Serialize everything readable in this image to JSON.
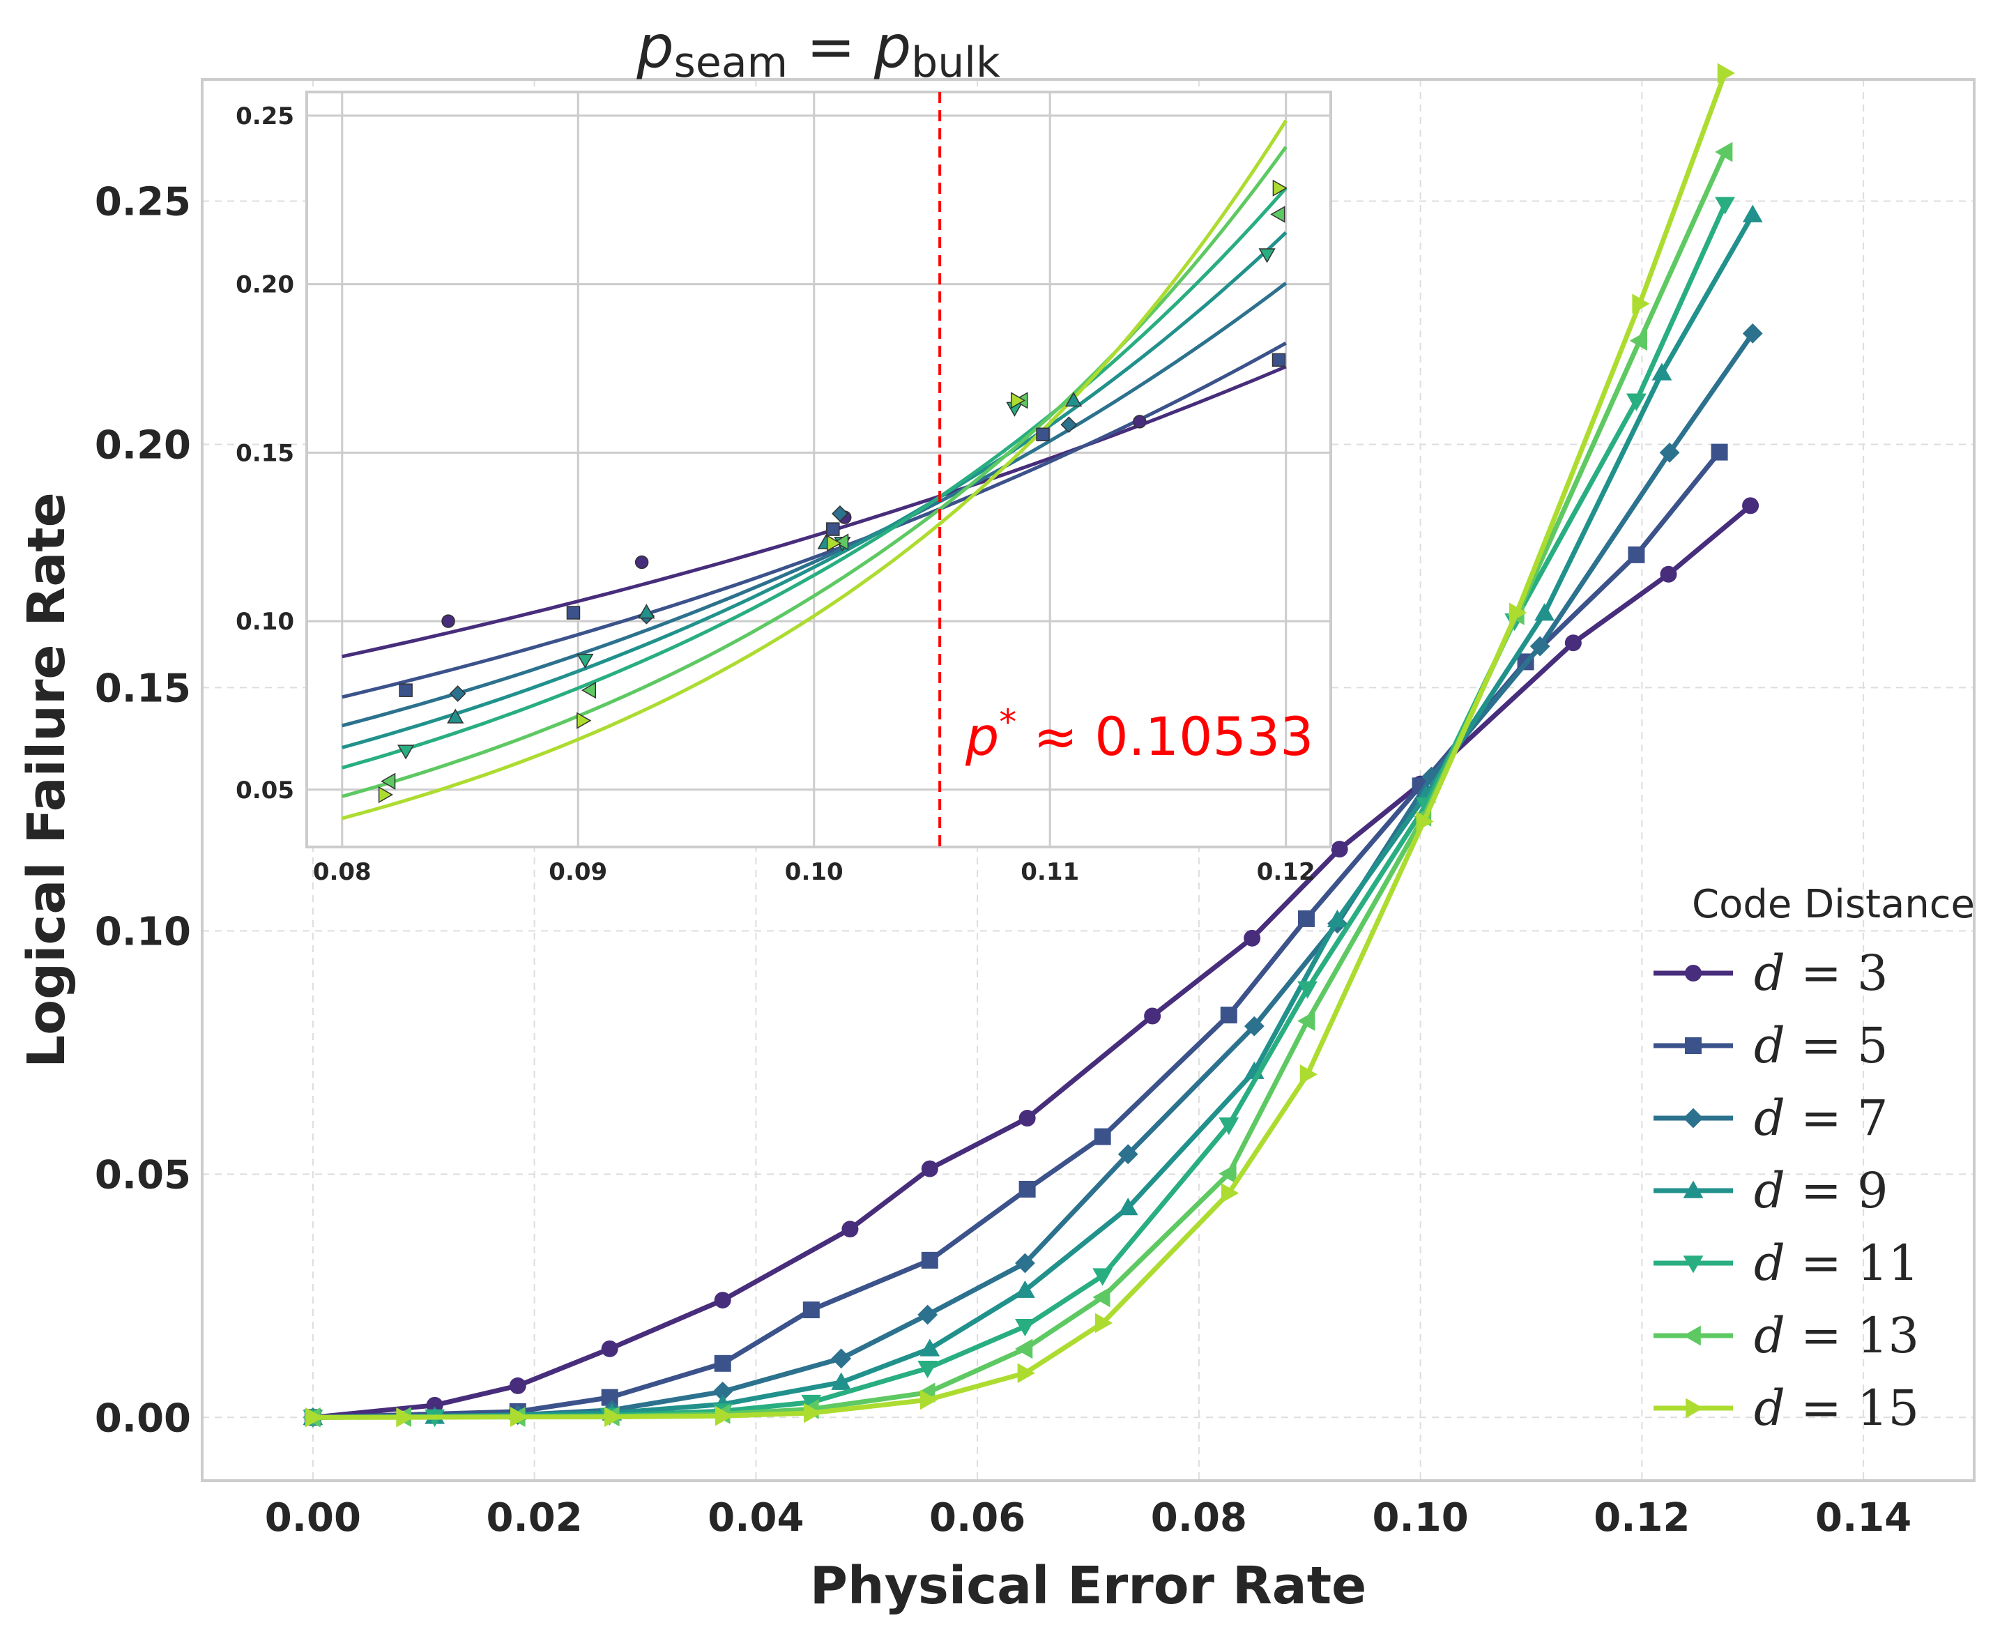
{
  "chart_data": {
    "type": "line",
    "xlabel": "Physical Error Rate",
    "ylabel": "Logical Failure Rate",
    "xlim": [
      -0.01,
      0.15
    ],
    "ylim": [
      -0.013,
      0.275
    ],
    "xticks": [
      0.0,
      0.02,
      0.04,
      0.06,
      0.08,
      0.1,
      0.12,
      0.14
    ],
    "xtick_labels": [
      "0.00",
      "0.02",
      "0.04",
      "0.06",
      "0.08",
      "0.10",
      "0.12",
      "0.14"
    ],
    "yticks": [
      0.0,
      0.05,
      0.1,
      0.15,
      0.2,
      0.25
    ],
    "ytick_labels": [
      "0.00",
      "0.05",
      "0.10",
      "0.15",
      "0.20",
      "0.25"
    ],
    "grid": true,
    "legend": {
      "title": "Code Distance",
      "placement": "lower-right"
    },
    "series": [
      {
        "name": "d = 3",
        "d": "3",
        "color": "#472d7b",
        "marker": "circle",
        "x": [
          0.0,
          0.011,
          0.0185,
          0.0268,
          0.037,
          0.0485,
          0.0557,
          0.0645,
          0.0758,
          0.0848,
          0.0927,
          0.1,
          0.1138,
          0.1224,
          0.1298
        ],
        "y": [
          0.0,
          0.0025,
          0.0065,
          0.0141,
          0.0241,
          0.0387,
          0.0511,
          0.0615,
          0.0825,
          0.0985,
          0.1168,
          0.1302,
          0.1592,
          0.1733,
          0.1874
        ]
      },
      {
        "name": "d = 5",
        "d": "5",
        "color": "#3b528b",
        "marker": "square",
        "x": [
          0.0,
          0.0185,
          0.0268,
          0.037,
          0.045,
          0.0557,
          0.0645,
          0.0713,
          0.0827,
          0.0897,
          0.1,
          0.1095,
          0.1195,
          0.127
        ],
        "y": [
          0.0,
          0.0012,
          0.0041,
          0.0111,
          0.0221,
          0.0323,
          0.0469,
          0.0577,
          0.0827,
          0.1025,
          0.1298,
          0.1553,
          0.1773,
          0.1984
        ]
      },
      {
        "name": "d = 7",
        "d": "7",
        "color": "#2c728e",
        "marker": "diamond",
        "x": [
          0.0,
          0.0185,
          0.027,
          0.037,
          0.0477,
          0.0555,
          0.0643,
          0.0736,
          0.085,
          0.0925,
          0.101,
          0.1108,
          0.1225,
          0.13
        ],
        "y": [
          0.0,
          0.0005,
          0.0015,
          0.0053,
          0.0121,
          0.0211,
          0.0317,
          0.0541,
          0.0804,
          0.1015,
          0.1317,
          0.1585,
          0.1983,
          0.2228
        ]
      },
      {
        "name": "d = 9",
        "d": "9",
        "color": "#21918c",
        "marker": "triangle-up",
        "x": [
          0.0,
          0.011,
          0.027,
          0.037,
          0.0477,
          0.0557,
          0.0643,
          0.0736,
          0.085,
          0.0925,
          0.1005,
          0.1112,
          0.1218,
          0.13
        ],
        "y": [
          0.0,
          0.0002,
          0.0009,
          0.0027,
          0.0072,
          0.0141,
          0.0261,
          0.0431,
          0.0711,
          0.1023,
          0.1279,
          0.1653,
          0.2147,
          0.2472
        ]
      },
      {
        "name": "d = 11",
        "d": "11",
        "color": "#28ae80",
        "marker": "triangle-down",
        "x": [
          0.0,
          0.011,
          0.0268,
          0.037,
          0.045,
          0.0555,
          0.0643,
          0.0713,
          0.0827,
          0.0898,
          0.1005,
          0.1085,
          0.1195,
          0.1275
        ],
        "y": [
          0.0,
          0.0001,
          0.0004,
          0.0013,
          0.0031,
          0.0101,
          0.0187,
          0.0291,
          0.0601,
          0.0881,
          0.1259,
          0.1637,
          0.2089,
          0.2493
        ]
      },
      {
        "name": "d = 13",
        "d": "13",
        "color": "#5ec962",
        "marker": "triangle-left",
        "x": [
          0.0,
          0.0082,
          0.0185,
          0.027,
          0.037,
          0.045,
          0.0555,
          0.0643,
          0.0713,
          0.0827,
          0.0898,
          0.1003,
          0.1087,
          0.1198,
          0.1275
        ],
        "y": [
          0.0,
          0.0001,
          0.0001,
          0.0002,
          0.0007,
          0.0017,
          0.0051,
          0.0141,
          0.0247,
          0.0501,
          0.0815,
          0.1235,
          0.1649,
          0.2213,
          0.2601
        ]
      },
      {
        "name": "d = 15",
        "d": "15",
        "color": "#addc30",
        "marker": "triangle-right",
        "x": [
          0.0,
          0.0082,
          0.0185,
          0.027,
          0.037,
          0.045,
          0.0555,
          0.0643,
          0.0713,
          0.0827,
          0.0898,
          0.1003,
          0.1087,
          0.1198,
          0.1275
        ],
        "y": [
          0.0,
          0.0,
          0.0001,
          0.0001,
          0.0003,
          0.0009,
          0.0036,
          0.0091,
          0.0194,
          0.0461,
          0.0705,
          0.1225,
          0.1654,
          0.2289,
          0.2763
        ]
      }
    ],
    "inset": {
      "title_var": "p",
      "title_sub_left": "seam",
      "title_eq": " = ",
      "title_sub_right": "bulk",
      "xlim": [
        0.0785,
        0.1219
      ],
      "ylim": [
        0.033,
        0.257
      ],
      "xticks": [
        0.08,
        0.09,
        0.1,
        0.11,
        0.12
      ],
      "xtick_labels": [
        "0.08",
        "0.09",
        "0.10",
        "0.11",
        "0.12"
      ],
      "yticks": [
        0.05,
        0.1,
        0.15,
        0.2,
        0.25
      ],
      "ytick_labels": [
        "0.05",
        "0.10",
        "0.15",
        "0.20",
        "0.25"
      ],
      "threshold": 0.10533,
      "threshold_color": "#ff0000",
      "annotation_var": "p",
      "annotation_sup": "*",
      "annotation_rest": " ≈ 0.10533",
      "fit_lines": [
        {
          "d": "3",
          "y_at_0.08": 0.0895,
          "y_at_0.12": 0.1755
        },
        {
          "d": "5",
          "y_at_0.08": 0.0775,
          "y_at_0.12": 0.1825
        },
        {
          "d": "7",
          "y_at_0.08": 0.069,
          "y_at_0.12": 0.2003
        },
        {
          "d": "9",
          "y_at_0.08": 0.0625,
          "y_at_0.12": 0.2153
        },
        {
          "d": "11",
          "y_at_0.08": 0.0565,
          "y_at_0.12": 0.2285
        },
        {
          "d": "13",
          "y_at_0.08": 0.048,
          "y_at_0.12": 0.2407
        },
        {
          "d": "15",
          "y_at_0.08": 0.0415,
          "y_at_0.12": 0.2485
        }
      ],
      "points": [
        {
          "d": "3",
          "x": [
            0.0845,
            0.0927,
            0.1013,
            0.1138
          ],
          "y": [
            0.1,
            0.1175,
            0.1308,
            0.1592
          ]
        },
        {
          "d": "5",
          "x": [
            0.0827,
            0.0898,
            0.1008,
            0.1097,
            0.1197
          ],
          "y": [
            0.0795,
            0.1025,
            0.1273,
            0.1554,
            0.1775
          ]
        },
        {
          "d": "7",
          "x": [
            0.0849,
            0.0929,
            0.1011,
            0.1108
          ],
          "y": [
            0.0785,
            0.1015,
            0.1319,
            0.1583
          ]
        },
        {
          "d": "9",
          "x": [
            0.0848,
            0.0929,
            0.1005,
            0.111
          ],
          "y": [
            0.0715,
            0.1026,
            0.1232,
            0.1655
          ]
        },
        {
          "d": "11",
          "x": [
            0.0827,
            0.0903,
            0.1012,
            0.1085,
            0.1192
          ],
          "y": [
            0.0615,
            0.0885,
            0.1232,
            0.1632,
            0.2088
          ]
        },
        {
          "d": "13",
          "x": [
            0.082,
            0.0905,
            0.1012,
            0.1088,
            0.1197
          ],
          "y": [
            0.0525,
            0.0795,
            0.1235,
            0.1655,
            0.2207
          ]
        },
        {
          "d": "15",
          "x": [
            0.0818,
            0.0902,
            0.1008,
            0.1086,
            0.1197
          ],
          "y": [
            0.0485,
            0.0705,
            0.1231,
            0.1655,
            0.2285
          ]
        }
      ]
    }
  }
}
